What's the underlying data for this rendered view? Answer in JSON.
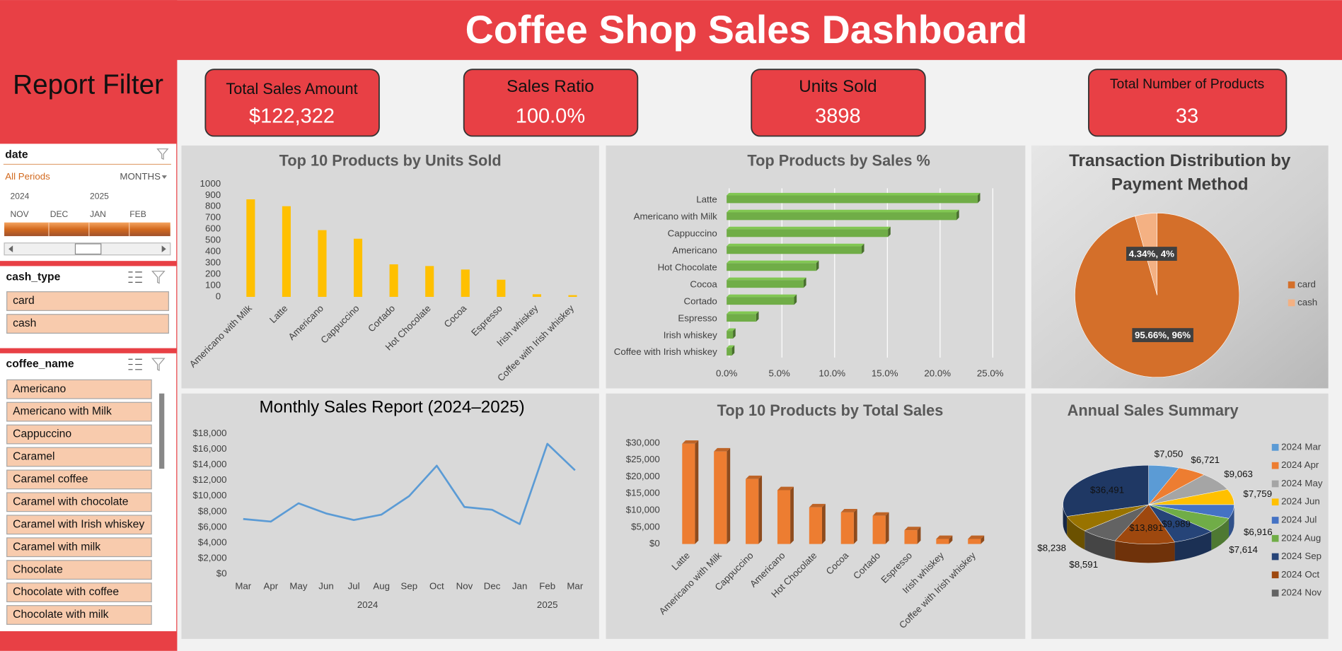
{
  "header": {
    "title": "Coffee Shop Sales Dashboard"
  },
  "filters": {
    "title": "Report Filter",
    "date": {
      "field": "date",
      "period": "All Periods",
      "level": "MONTHS",
      "years": [
        "2024",
        "2025"
      ],
      "months": [
        "NOV",
        "DEC",
        "JAN",
        "FEB"
      ]
    },
    "cash_type": {
      "field": "cash_type",
      "items": [
        "card",
        "cash"
      ]
    },
    "coffee_name": {
      "field": "coffee_name",
      "items": [
        "Americano",
        "Americano with Milk",
        "Cappuccino",
        "Caramel",
        "Caramel coffee",
        "Caramel with chocolate",
        "Caramel with Irish whiskey",
        "Caramel with milk",
        "Chocolate",
        "Chocolate with coffee",
        "Chocolate with milk"
      ]
    }
  },
  "kpis": [
    {
      "label": "Total Sales Amount",
      "value": "$122,322"
    },
    {
      "label": "Sales Ratio",
      "value": "100.0%"
    },
    {
      "label": "Units Sold",
      "value": "3898"
    },
    {
      "label": "Total Number of Products",
      "value": "33"
    }
  ],
  "chart_data": [
    {
      "type": "bar",
      "title": "Top 10 Products by Units Sold",
      "categories": [
        "Americano with Milk",
        "Latte",
        "Americano",
        "Cappuccino",
        "Cortado",
        "Hot Chocolate",
        "Cocoa",
        "Espresso",
        "Irish whiskey",
        "Coffee with Irish whiskey"
      ],
      "values": [
        864,
        803,
        591,
        515,
        288,
        273,
        242,
        152,
        23,
        15
      ],
      "color": "#ffc000",
      "ylim": [
        0,
        1000
      ],
      "yticks": [
        0,
        100,
        200,
        300,
        400,
        500,
        600,
        700,
        800,
        900,
        1000
      ],
      "grid": false
    },
    {
      "type": "hbar",
      "title": "Top Products by Sales %",
      "categories": [
        "Latte",
        "Americano with Milk",
        "Cappuccino",
        "Americano",
        "Hot Chocolate",
        "Cocoa",
        "Cortado",
        "Espresso",
        "Irish whiskey",
        "Coffee with Irish whiskey"
      ],
      "values": [
        23.8,
        21.8,
        15.3,
        12.8,
        8.5,
        7.3,
        6.4,
        2.8,
        0.6,
        0.5
      ],
      "color": "#70ad47",
      "xlim": [
        0,
        25
      ],
      "xticks": [
        {
          "value": 0,
          "label": "0.0%"
        },
        {
          "value": 5,
          "label": "5.0%"
        },
        {
          "value": 10,
          "label": "10.0%"
        },
        {
          "value": 15,
          "label": "15.0%"
        },
        {
          "value": 20,
          "label": "20.0%"
        },
        {
          "value": 25,
          "label": "25.0%"
        }
      ],
      "grid": true
    },
    {
      "type": "pie",
      "title": "Transaction Distribution by Payment Method",
      "categories": [
        "card",
        "cash"
      ],
      "values": [
        95.66,
        4.34
      ],
      "value_labels": [
        "95.66%, 96%",
        "4.34%, 4%"
      ],
      "colors": [
        "#d46f2a",
        "#f4b183"
      ],
      "legend": "right"
    },
    {
      "type": "line",
      "title": "Monthly Sales Report (2024–2025)",
      "category_groups": [
        {
          "label": "2024",
          "categories": [
            "Mar",
            "Apr",
            "May",
            "Jun",
            "Jul",
            "Aug",
            "Sep",
            "Oct",
            "Nov",
            "Dec"
          ]
        },
        {
          "label": "2025",
          "categories": [
            "Jan",
            "Feb",
            "Mar"
          ]
        }
      ],
      "values": [
        7050,
        6721,
        9063,
        7759,
        6916,
        7614,
        9989,
        13891,
        8591,
        8238,
        6400,
        16700,
        13300
      ],
      "color": "#5b9bd5",
      "ylim": [
        0,
        18000
      ],
      "yticks": [
        {
          "value": 0,
          "label": "$0"
        },
        {
          "value": 2000,
          "label": "$2,000"
        },
        {
          "value": 4000,
          "label": "$4,000"
        },
        {
          "value": 6000,
          "label": "$6,000"
        },
        {
          "value": 8000,
          "label": "$8,000"
        },
        {
          "value": 10000,
          "label": "$10,000"
        },
        {
          "value": 12000,
          "label": "$12,000"
        },
        {
          "value": 14000,
          "label": "$14,000"
        },
        {
          "value": 16000,
          "label": "$16,000"
        },
        {
          "value": 18000,
          "label": "$18,000"
        }
      ],
      "grid": false
    },
    {
      "type": "bar3d",
      "title": "Top 10 Products by Total Sales",
      "categories": [
        "Latte",
        "Americano with Milk",
        "Cappuccino",
        "Americano",
        "Hot Chocolate",
        "Cocoa",
        "Cortado",
        "Espresso",
        "Irish whiskey",
        "Coffee with Irish whiskey"
      ],
      "values": [
        29800,
        27500,
        19300,
        16000,
        10900,
        9400,
        8400,
        4100,
        1500,
        1500
      ],
      "color": "#ed7d31",
      "ylim": [
        0,
        30000
      ],
      "yticks": [
        {
          "value": 0,
          "label": "$0"
        },
        {
          "value": 5000,
          "label": "$5,000"
        },
        {
          "value": 10000,
          "label": "$10,000"
        },
        {
          "value": 15000,
          "label": "$15,000"
        },
        {
          "value": 20000,
          "label": "$20,000"
        },
        {
          "value": 25000,
          "label": "$25,000"
        },
        {
          "value": 30000,
          "label": "$30,000"
        }
      ],
      "grid": false
    },
    {
      "type": "pie3d",
      "title": "Annual Sales Summary",
      "categories": [
        "2024 Mar",
        "2024 Apr",
        "2024 May",
        "2024 Jun",
        "2024 Jul",
        "2024 Aug",
        "2024 Sep",
        "2024 Oct",
        "2024 Nov",
        null,
        null
      ],
      "values": [
        7050,
        6721,
        9063,
        7759,
        6916,
        7614,
        9989,
        13891,
        8591,
        8238,
        36491
      ],
      "value_labels": [
        "$7,050",
        "$6,721",
        "$9,063",
        "$7,759",
        "$6,916",
        "$7,614",
        "$9,989",
        "$13,891",
        "$8,591",
        "$8,238",
        "$36,491"
      ],
      "colors": [
        "#5b9bd5",
        "#ed7d31",
        "#a5a5a5",
        "#ffc000",
        "#4472c4",
        "#70ad47",
        "#264478",
        "#9e480e",
        "#636363",
        "#997300",
        "#1f3864"
      ],
      "legend": "right"
    }
  ]
}
